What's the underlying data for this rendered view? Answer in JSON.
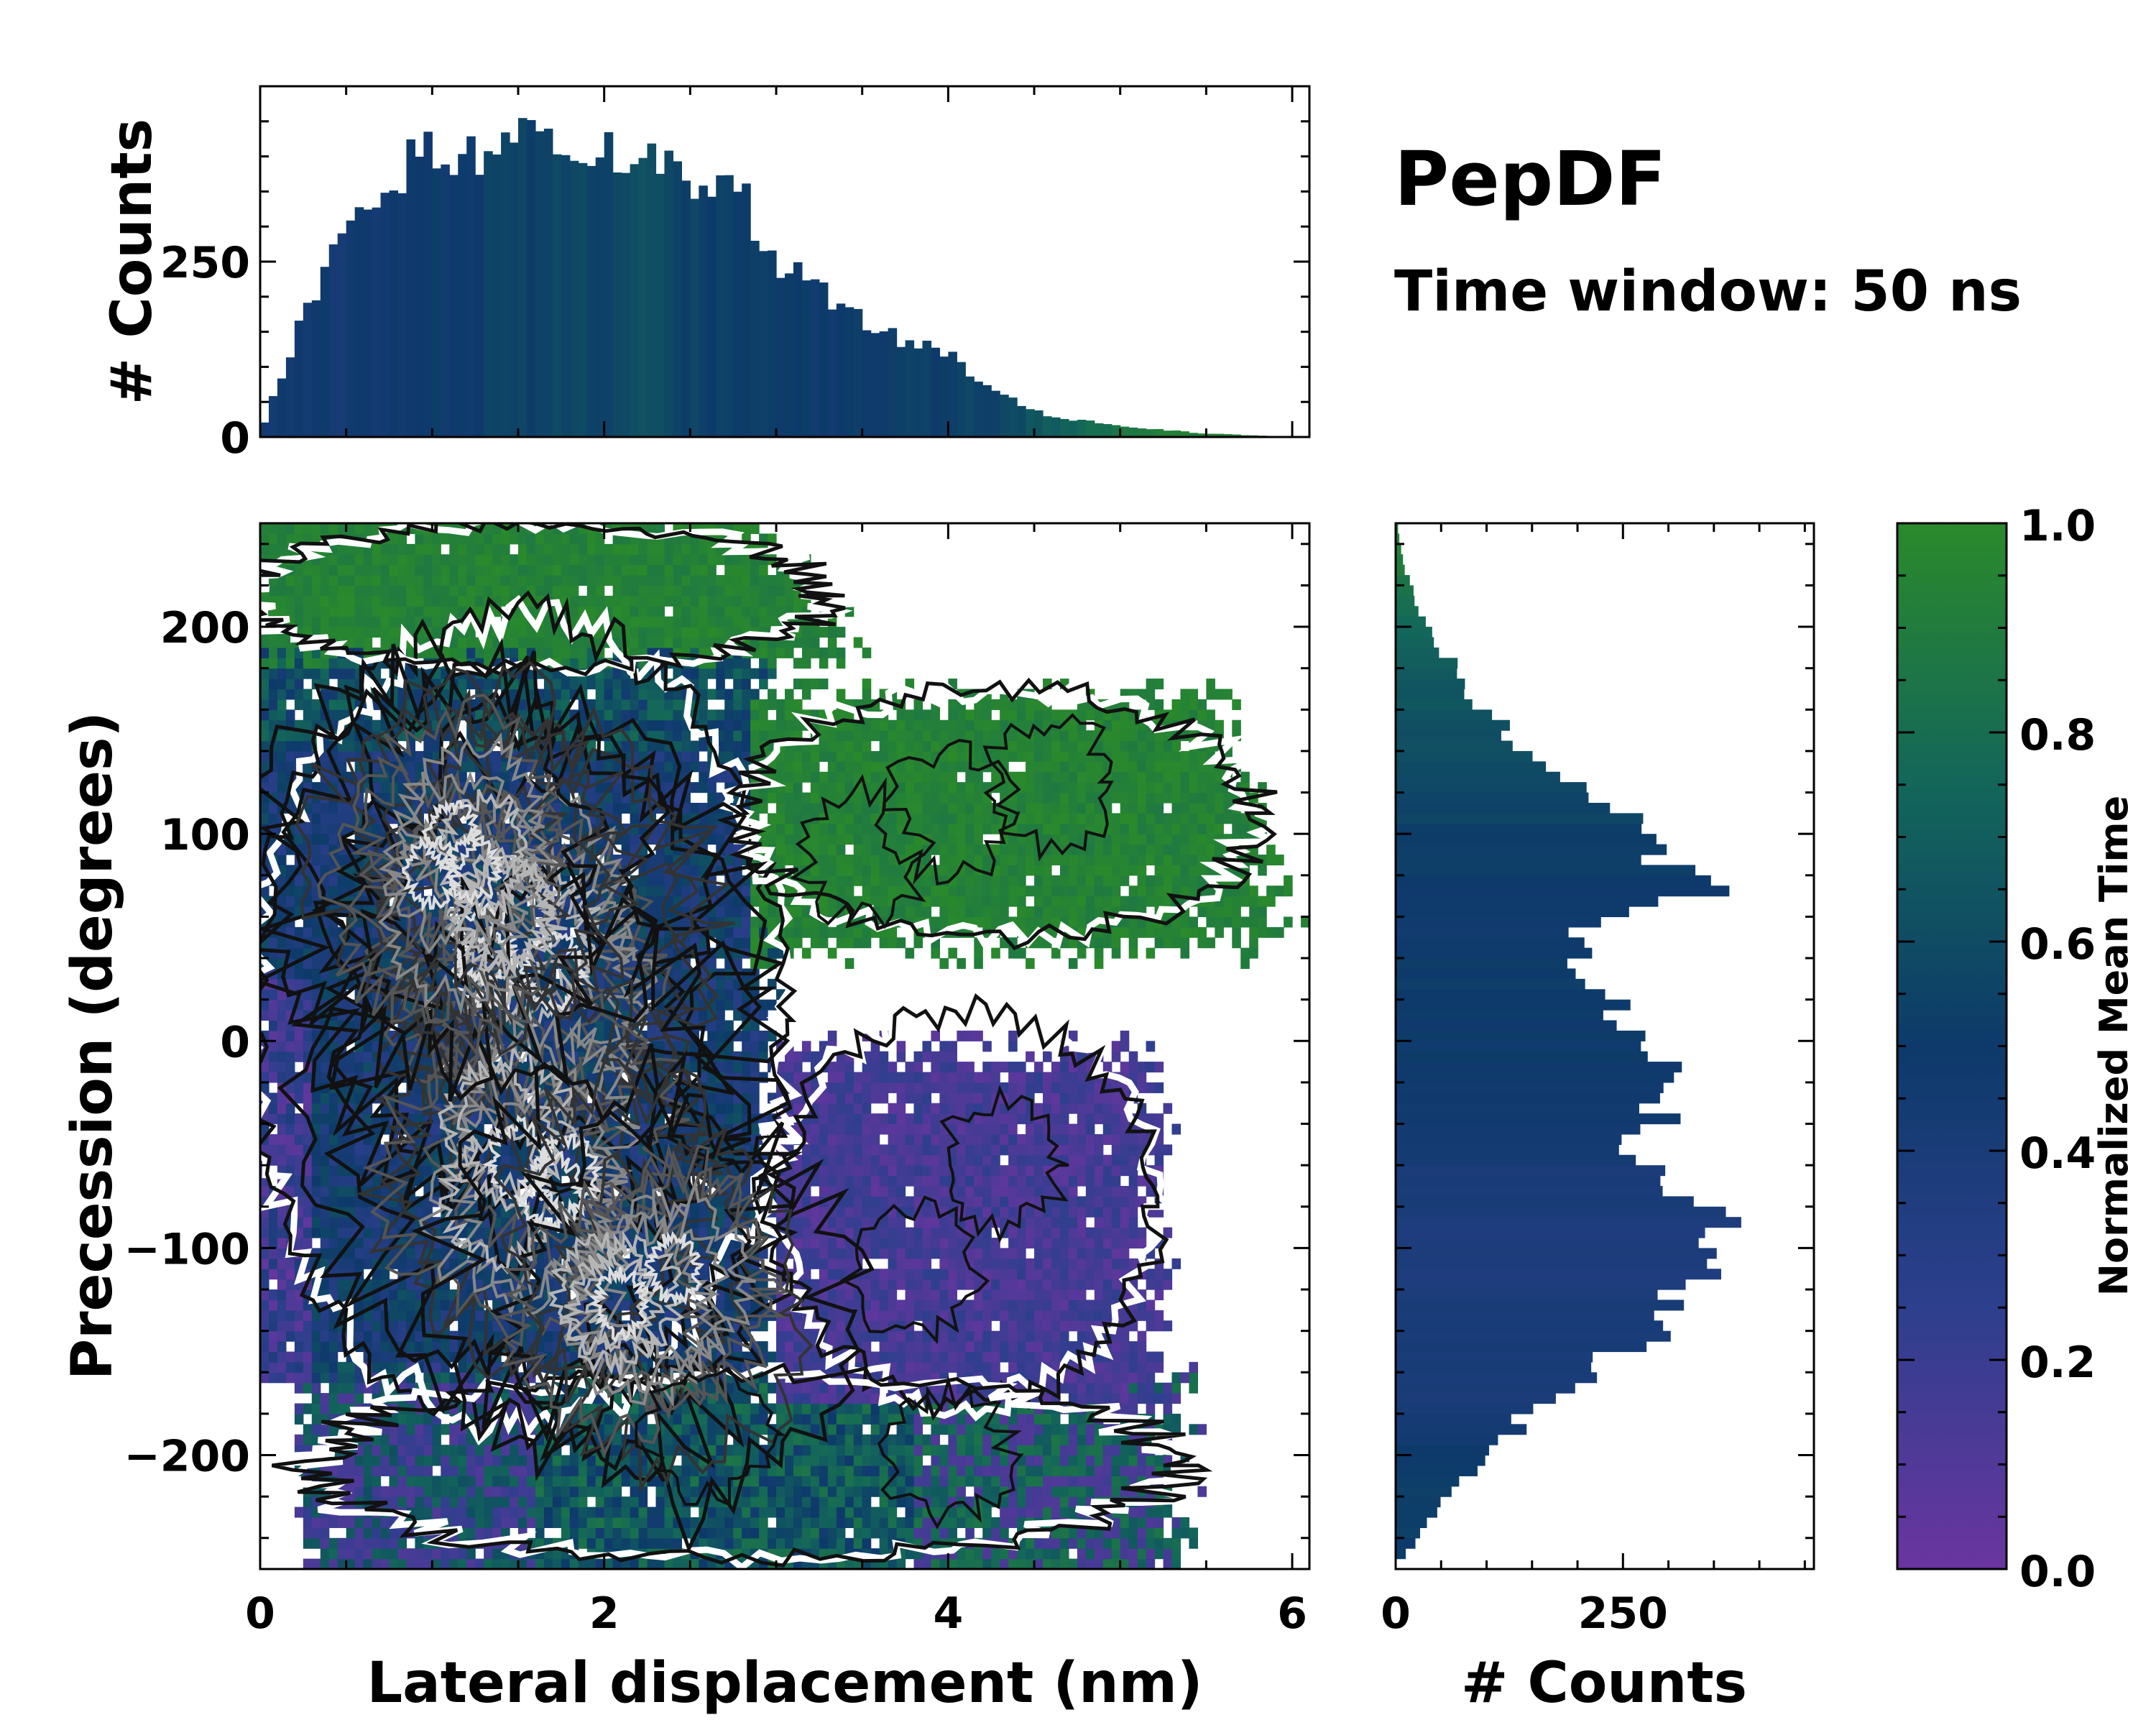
{
  "title": "PepDF",
  "subtitle": "Time window: 50 ns",
  "colors": {
    "cmap_low": "#6a35a0",
    "cmap_mid_low": "#2d3f8d",
    "cmap_mid": "#0d3a6a",
    "cmap_mid_high": "#13665a",
    "cmap_high": "#2a8a2b",
    "contour_dark": "#111111",
    "contour_mid": "#555555",
    "contour_light": "#dddddd"
  },
  "chart_data": [
    {
      "id": "top-histogram",
      "type": "bar",
      "ylabel": "# Counts",
      "xlim": [
        0,
        6.1
      ],
      "ylim": [
        0,
        500
      ],
      "yticks": [
        0,
        250
      ],
      "bin_width": 0.05,
      "profile_x": [
        0,
        0.1,
        0.3,
        0.5,
        0.7,
        0.9,
        1.2,
        1.5,
        1.8,
        2.2,
        2.5,
        2.8,
        3.0,
        3.3,
        3.6,
        4.0,
        4.3,
        4.6,
        5.0,
        5.5,
        5.9,
        6.1
      ],
      "profile_y": [
        5,
        70,
        200,
        290,
        355,
        395,
        410,
        430,
        425,
        400,
        380,
        345,
        250,
        200,
        150,
        120,
        60,
        30,
        15,
        5,
        1,
        0
      ],
      "profile_color": [
        0.45,
        0.45,
        0.45,
        0.45,
        0.45,
        0.48,
        0.5,
        0.55,
        0.55,
        0.6,
        0.55,
        0.52,
        0.5,
        0.48,
        0.5,
        0.55,
        0.55,
        0.7,
        0.85,
        0.95,
        0.9,
        0.9
      ]
    },
    {
      "id": "main-heatmap",
      "type": "heatmap",
      "xlabel": "Lateral displacement (nm)",
      "ylabel": "Precession (degrees)",
      "xlim": [
        0,
        6.1
      ],
      "ylim": [
        -255,
        250
      ],
      "xticks": [
        0,
        2,
        4,
        6
      ],
      "yticks": [
        200,
        100,
        0,
        -100,
        -200
      ],
      "ytick_labels": [
        "200",
        "100",
        "0",
        "−100",
        "−200"
      ],
      "cell_size": [
        0.05,
        5
      ],
      "regions": [
        {
          "name": "upper-left-core",
          "x": [
            0,
            3.0
          ],
          "y": [
            -160,
            180
          ],
          "value": 0.45
        },
        {
          "name": "top-band",
          "x": [
            0,
            3.6
          ],
          "y": [
            180,
            245
          ],
          "value": 0.95
        },
        {
          "name": "upper-right-wing",
          "x": [
            2.9,
            5.8
          ],
          "y": [
            50,
            160
          ],
          "value": 0.95
        },
        {
          "name": "lower-right-lobe",
          "x": [
            3.0,
            5.2
          ],
          "y": [
            -165,
            0
          ],
          "value": 0.12
        },
        {
          "name": "bottom-band",
          "x": [
            0.3,
            5.3
          ],
          "y": [
            -250,
            -160
          ],
          "value": 0.55
        }
      ],
      "density_centers": [
        {
          "x": 1.5,
          "y": 40,
          "weight": 1.0
        },
        {
          "x": 1.6,
          "y": -60,
          "weight": 1.0
        },
        {
          "x": 1.2,
          "y": 80,
          "weight": 0.8
        },
        {
          "x": 2.2,
          "y": -110,
          "weight": 0.8
        }
      ],
      "contour_levels": [
        "low",
        "mid",
        "high"
      ]
    },
    {
      "id": "right-histogram",
      "type": "bar",
      "orientation": "horizontal",
      "xlabel": "# Counts",
      "xlim": [
        0,
        460
      ],
      "xticks": [
        0,
        250
      ],
      "ylim": [
        -255,
        250
      ],
      "bin_width": 5,
      "profile_y": [
        -250,
        -240,
        -220,
        -200,
        -180,
        -160,
        -140,
        -120,
        -100,
        -85,
        -70,
        -55,
        -40,
        -20,
        0,
        20,
        40,
        60,
        70,
        90,
        110,
        130,
        150,
        170,
        190,
        210,
        230,
        250
      ],
      "profile_x": [
        5,
        25,
        60,
        95,
        150,
        220,
        280,
        330,
        380,
        360,
        300,
        260,
        280,
        300,
        280,
        230,
        190,
        230,
        350,
        300,
        250,
        160,
        120,
        80,
        50,
        25,
        8,
        2
      ],
      "profile_color": [
        0.5,
        0.52,
        0.52,
        0.5,
        0.42,
        0.4,
        0.4,
        0.38,
        0.38,
        0.38,
        0.4,
        0.42,
        0.45,
        0.48,
        0.5,
        0.5,
        0.5,
        0.48,
        0.48,
        0.52,
        0.55,
        0.6,
        0.63,
        0.67,
        0.7,
        0.8,
        0.9,
        0.95
      ]
    },
    {
      "id": "colorbar",
      "type": "colorbar",
      "label": "Normalized Mean Time",
      "ylim": [
        0,
        1
      ],
      "ticks": [
        "0.0",
        "0.2",
        "0.4",
        "0.6",
        "0.8",
        "1.0"
      ],
      "tick_values": [
        0,
        0.2,
        0.4,
        0.6,
        0.8,
        1.0
      ]
    }
  ]
}
